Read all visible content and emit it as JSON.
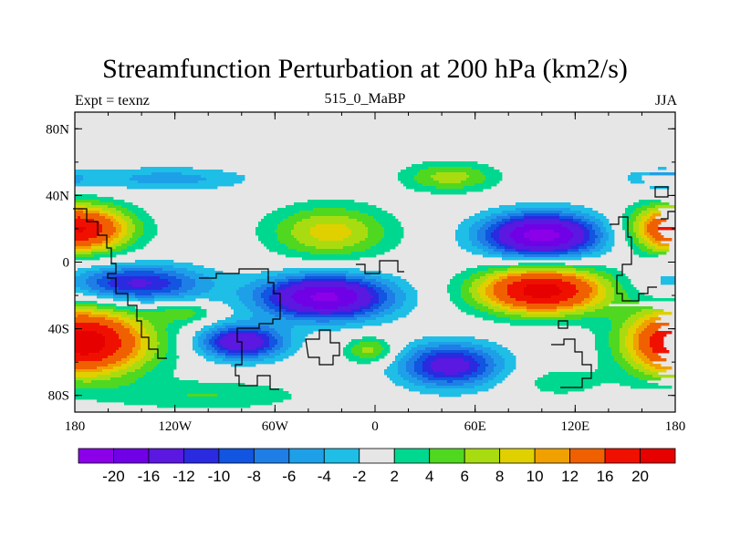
{
  "header": {
    "title": "Streamfunction Perturbation at 200 hPa (km2/s)",
    "left": "Expt = texnz",
    "center": "515_0_MaBP",
    "right": "JJA"
  },
  "chart_data": {
    "type": "heatmap",
    "title": "Streamfunction Perturbation at 200 hPa (km2/s)",
    "subtitle_left": "Expt = texnz",
    "subtitle_center": "515_0_MaBP",
    "subtitle_right": "JJA",
    "xlim": [
      -180,
      180
    ],
    "ylim": [
      -90,
      90
    ],
    "x_ticks": [
      {
        "value": -180,
        "label": "180"
      },
      {
        "value": -120,
        "label": "120W"
      },
      {
        "value": -60,
        "label": "60W"
      },
      {
        "value": 0,
        "label": "0"
      },
      {
        "value": 60,
        "label": "60E"
      },
      {
        "value": 120,
        "label": "120E"
      },
      {
        "value": 180,
        "label": "180"
      }
    ],
    "y_ticks": [
      {
        "value": 80,
        "label": "80N"
      },
      {
        "value": 40,
        "label": "40N"
      },
      {
        "value": 0,
        "label": "0"
      },
      {
        "value": -40,
        "label": "40S"
      },
      {
        "value": -80,
        "label": "80S"
      }
    ],
    "levels": [
      -20,
      -16,
      -12,
      -10,
      -8,
      -6,
      -4,
      -2,
      2,
      4,
      6,
      8,
      10,
      12,
      16,
      20
    ],
    "level_labels": [
      "-20",
      "-16",
      "-12",
      "-10",
      "-8",
      "-6",
      "-4",
      "-2",
      "2",
      "4",
      "6",
      "8",
      "10",
      "12",
      "16",
      "20"
    ],
    "colors": [
      "#8b00e8",
      "#7000e6",
      "#5a18e0",
      "#2a2ae0",
      "#1155e0",
      "#1e7ee6",
      "#1ea0e8",
      "#1ebee6",
      "#e6e6e6",
      "#00d890",
      "#50d820",
      "#a8dc10",
      "#e0d000",
      "#f0a000",
      "#f06000",
      "#f01000",
      "#e60000"
    ],
    "features": [
      {
        "lon": 100,
        "lat": -17,
        "amp": 22,
        "rlon": 38,
        "rlat": 14
      },
      {
        "lon": 100,
        "lat": 16,
        "amp": -22,
        "rlon": 34,
        "rlat": 13
      },
      {
        "lon": -30,
        "lat": -21,
        "amp": -21,
        "rlon": 38,
        "rlat": 13
      },
      {
        "lon": -80,
        "lat": -48,
        "amp": -16,
        "rlon": 25,
        "rlat": 10
      },
      {
        "lon": 45,
        "lat": -62,
        "amp": -14,
        "rlon": 30,
        "rlat": 13
      },
      {
        "lon": -143,
        "lat": -13,
        "amp": -13,
        "rlon": 40,
        "rlat": 11
      },
      {
        "lon": -165,
        "lat": -48,
        "amp": 12,
        "rlon": 40,
        "rlat": 20
      },
      {
        "lon": 180,
        "lat": -48,
        "amp": 12,
        "rlon": 30,
        "rlat": 20
      },
      {
        "lon": -172,
        "lat": 20,
        "amp": 12,
        "rlon": 30,
        "rlat": 14
      },
      {
        "lon": -27,
        "lat": 18,
        "amp": 9,
        "rlon": 36,
        "rlat": 16
      },
      {
        "lon": 45,
        "lat": 51,
        "amp": 7,
        "rlon": 28,
        "rlat": 9
      },
      {
        "lon": 178,
        "lat": 20,
        "amp": 9,
        "rlon": 25,
        "rlat": 14
      },
      {
        "lon": -3,
        "lat": -53,
        "amp": 7,
        "rlon": 15,
        "rlat": 8
      },
      {
        "lon": -115,
        "lat": -30,
        "amp": 5,
        "rlon": 18,
        "rlat": 6
      },
      {
        "lon": -125,
        "lat": 50,
        "amp": -5,
        "rlon": 50,
        "rlat": 7
      },
      {
        "lon": 170,
        "lat": 50,
        "amp": -5,
        "rlon": 18,
        "rlat": 6
      },
      {
        "lon": 110,
        "lat": -72,
        "amp": 3,
        "rlon": 30,
        "rlat": 10
      },
      {
        "lon": -100,
        "lat": -80,
        "amp": 4,
        "rlon": 60,
        "rlat": 9
      }
    ]
  }
}
